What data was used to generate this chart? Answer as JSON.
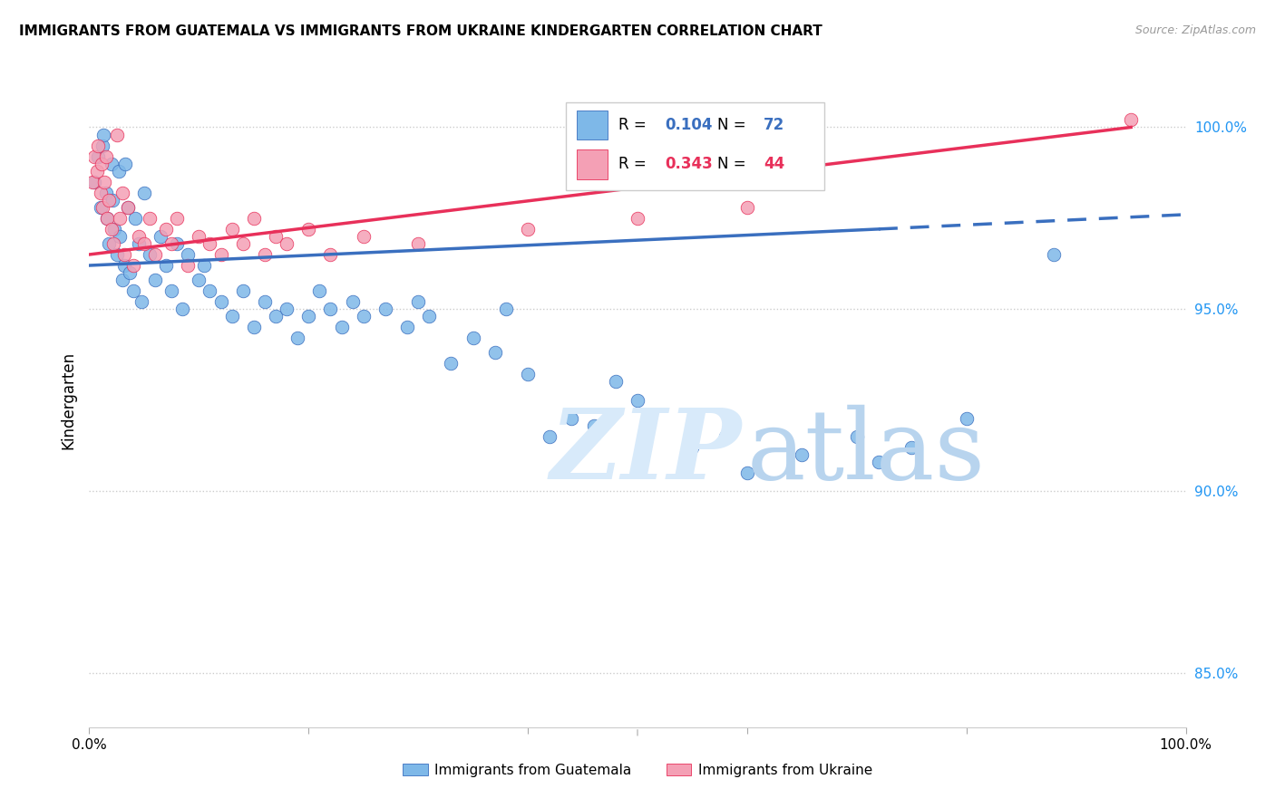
{
  "title": "IMMIGRANTS FROM GUATEMALA VS IMMIGRANTS FROM UKRAINE KINDERGARTEN CORRELATION CHART",
  "source": "Source: ZipAtlas.com",
  "ylabel": "Kindergarten",
  "xlim": [
    0.0,
    100.0
  ],
  "ylim": [
    83.5,
    101.5
  ],
  "R_guatemala": 0.104,
  "N_guatemala": 72,
  "R_ukraine": 0.343,
  "N_ukraine": 44,
  "color_guatemala": "#7EB8E8",
  "color_ukraine": "#F4A0B5",
  "color_trendline_guatemala": "#3A6FBF",
  "color_trendline_ukraine": "#E8305A",
  "legend_label_guatemala": "Immigrants from Guatemala",
  "legend_label_ukraine": "Immigrants from Ukraine",
  "guatemala_x": [
    0.5,
    0.8,
    1.0,
    1.2,
    1.3,
    1.5,
    1.6,
    1.8,
    2.0,
    2.1,
    2.3,
    2.5,
    2.7,
    2.8,
    3.0,
    3.2,
    3.3,
    3.5,
    3.7,
    4.0,
    4.2,
    4.5,
    4.8,
    5.0,
    5.5,
    6.0,
    6.5,
    7.0,
    7.5,
    8.0,
    8.5,
    9.0,
    10.0,
    10.5,
    11.0,
    12.0,
    13.0,
    14.0,
    15.0,
    16.0,
    17.0,
    18.0,
    19.0,
    20.0,
    21.0,
    22.0,
    23.0,
    24.0,
    25.0,
    27.0,
    29.0,
    30.0,
    31.0,
    33.0,
    35.0,
    37.0,
    38.0,
    40.0,
    42.0,
    44.0,
    46.0,
    48.0,
    50.0,
    55.0,
    58.0,
    60.0,
    65.0,
    70.0,
    72.0,
    75.0,
    80.0,
    88.0
  ],
  "guatemala_y": [
    98.5,
    99.2,
    97.8,
    99.5,
    99.8,
    98.2,
    97.5,
    96.8,
    99.0,
    98.0,
    97.2,
    96.5,
    98.8,
    97.0,
    95.8,
    96.2,
    99.0,
    97.8,
    96.0,
    95.5,
    97.5,
    96.8,
    95.2,
    98.2,
    96.5,
    95.8,
    97.0,
    96.2,
    95.5,
    96.8,
    95.0,
    96.5,
    95.8,
    96.2,
    95.5,
    95.2,
    94.8,
    95.5,
    94.5,
    95.2,
    94.8,
    95.0,
    94.2,
    94.8,
    95.5,
    95.0,
    94.5,
    95.2,
    94.8,
    95.0,
    94.5,
    95.2,
    94.8,
    93.5,
    94.2,
    93.8,
    95.0,
    93.2,
    91.5,
    92.0,
    91.8,
    93.0,
    92.5,
    91.2,
    91.5,
    90.5,
    91.0,
    91.5,
    90.8,
    91.2,
    92.0,
    96.5
  ],
  "ukraine_x": [
    0.3,
    0.5,
    0.7,
    0.8,
    1.0,
    1.1,
    1.2,
    1.4,
    1.5,
    1.6,
    1.8,
    2.0,
    2.2,
    2.5,
    2.8,
    3.0,
    3.2,
    3.5,
    4.0,
    4.5,
    5.0,
    5.5,
    6.0,
    7.0,
    7.5,
    8.0,
    9.0,
    10.0,
    11.0,
    12.0,
    13.0,
    14.0,
    15.0,
    16.0,
    17.0,
    18.0,
    20.0,
    22.0,
    25.0,
    30.0,
    40.0,
    50.0,
    60.0,
    95.0
  ],
  "ukraine_y": [
    98.5,
    99.2,
    98.8,
    99.5,
    98.2,
    99.0,
    97.8,
    98.5,
    99.2,
    97.5,
    98.0,
    97.2,
    96.8,
    99.8,
    97.5,
    98.2,
    96.5,
    97.8,
    96.2,
    97.0,
    96.8,
    97.5,
    96.5,
    97.2,
    96.8,
    97.5,
    96.2,
    97.0,
    96.8,
    96.5,
    97.2,
    96.8,
    97.5,
    96.5,
    97.0,
    96.8,
    97.2,
    96.5,
    97.0,
    96.8,
    97.2,
    97.5,
    97.8,
    100.2
  ],
  "trendline_g_x0": 0.0,
  "trendline_g_y0": 96.2,
  "trendline_g_x1": 72.0,
  "trendline_g_y1": 97.2,
  "trendline_g_dash_x0": 72.0,
  "trendline_g_dash_y0": 97.2,
  "trendline_g_dash_x1": 100.0,
  "trendline_g_dash_y1": 97.6,
  "trendline_u_x0": 0.0,
  "trendline_u_y0": 96.5,
  "trendline_u_x1": 95.0,
  "trendline_u_y1": 100.0
}
